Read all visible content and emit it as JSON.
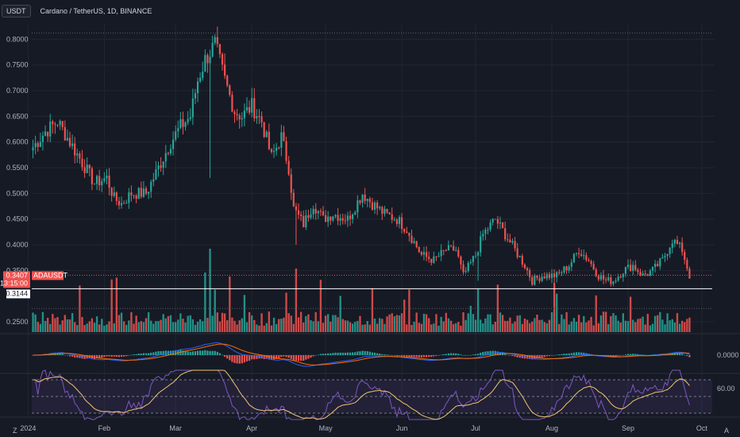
{
  "header": {
    "currency_button": "USDT",
    "title": "Cardano / TetherUS, 1D, BINANCE"
  },
  "colors": {
    "background": "#161a25",
    "up": "#26a69a",
    "down": "#ef5350",
    "macd_line": "#2962ff",
    "signal_line": "#ff6d00",
    "rsi_line": "#7e57c2",
    "rsi_ma": "#f5c46b",
    "grid": "#22262f",
    "axis_text": "#b2b5be"
  },
  "corner_icons": {
    "left": "Z",
    "right": "A"
  },
  "chart_data": {
    "type": "candlestick",
    "symbol": "ADAUSDT",
    "interval": "1D",
    "exchange": "BINANCE",
    "y_axis": {
      "ticks": [
        "0.8000",
        "0.7500",
        "0.7000",
        "0.6500",
        "0.6000",
        "0.5500",
        "0.5000",
        "0.4500",
        "0.4000",
        "0.3500",
        "0.2500"
      ],
      "range": [
        0.23,
        0.83
      ]
    },
    "x_axis": {
      "ticks": [
        "2024",
        "Feb",
        "Mar",
        "Apr",
        "May",
        "Jun",
        "Jul",
        "Aug",
        "Sep",
        "Oct"
      ]
    },
    "price_markers": {
      "last_price": "0.3407",
      "countdown": "13:15:00",
      "last_price_value": 0.3407,
      "support_value": 0.3144,
      "support_label": "0.3144",
      "symbol_label": "ADAUSDT",
      "high_dotted": 0.812,
      "low_dotted": 0.276
    },
    "anchors": [
      {
        "day": 0,
        "p": 0.59
      },
      {
        "day": 5,
        "p": 0.62
      },
      {
        "day": 10,
        "p": 0.64
      },
      {
        "day": 15,
        "p": 0.6
      },
      {
        "day": 20,
        "p": 0.56
      },
      {
        "day": 25,
        "p": 0.52
      },
      {
        "day": 30,
        "p": 0.53
      },
      {
        "day": 33,
        "p": 0.49
      },
      {
        "day": 36,
        "p": 0.48
      },
      {
        "day": 40,
        "p": 0.5
      },
      {
        "day": 46,
        "p": 0.5
      },
      {
        "day": 52,
        "p": 0.56
      },
      {
        "day": 56,
        "p": 0.6
      },
      {
        "day": 60,
        "p": 0.63
      },
      {
        "day": 64,
        "p": 0.65
      },
      {
        "day": 67,
        "p": 0.72
      },
      {
        "day": 70,
        "p": 0.76
      },
      {
        "day": 74,
        "p": 0.79
      },
      {
        "day": 78,
        "p": 0.72
      },
      {
        "day": 82,
        "p": 0.66
      },
      {
        "day": 85,
        "p": 0.65
      },
      {
        "day": 89,
        "p": 0.67
      },
      {
        "day": 93,
        "p": 0.64
      },
      {
        "day": 97,
        "p": 0.57
      },
      {
        "day": 101,
        "p": 0.61
      },
      {
        "day": 104,
        "p": 0.55
      },
      {
        "day": 106,
        "p": 0.47
      },
      {
        "day": 110,
        "p": 0.44
      },
      {
        "day": 114,
        "p": 0.48
      },
      {
        "day": 118,
        "p": 0.45
      },
      {
        "day": 122,
        "p": 0.46
      },
      {
        "day": 128,
        "p": 0.45
      },
      {
        "day": 134,
        "p": 0.5
      },
      {
        "day": 138,
        "p": 0.48
      },
      {
        "day": 143,
        "p": 0.46
      },
      {
        "day": 148,
        "p": 0.45
      },
      {
        "day": 152,
        "p": 0.43
      },
      {
        "day": 158,
        "p": 0.38
      },
      {
        "day": 163,
        "p": 0.37
      },
      {
        "day": 168,
        "p": 0.39
      },
      {
        "day": 172,
        "p": 0.39
      },
      {
        "day": 175,
        "p": 0.34
      },
      {
        "day": 180,
        "p": 0.38
      },
      {
        "day": 183,
        "p": 0.42
      },
      {
        "day": 188,
        "p": 0.45
      },
      {
        "day": 192,
        "p": 0.42
      },
      {
        "day": 196,
        "p": 0.39
      },
      {
        "day": 200,
        "p": 0.36
      },
      {
        "day": 203,
        "p": 0.33
      },
      {
        "day": 207,
        "p": 0.34
      },
      {
        "day": 213,
        "p": 0.34
      },
      {
        "day": 218,
        "p": 0.36
      },
      {
        "day": 222,
        "p": 0.39
      },
      {
        "day": 226,
        "p": 0.37
      },
      {
        "day": 230,
        "p": 0.34
      },
      {
        "day": 233,
        "p": 0.33
      },
      {
        "day": 236,
        "p": 0.33
      },
      {
        "day": 240,
        "p": 0.35
      },
      {
        "day": 244,
        "p": 0.36
      },
      {
        "day": 248,
        "p": 0.34
      },
      {
        "day": 252,
        "p": 0.35
      },
      {
        "day": 256,
        "p": 0.37
      },
      {
        "day": 260,
        "p": 0.41
      },
      {
        "day": 264,
        "p": 0.39
      },
      {
        "day": 267,
        "p": 0.34
      }
    ],
    "indicators": {
      "macd": {
        "zero_label": "0.0000"
      },
      "rsi": {
        "label": "60.00"
      }
    }
  }
}
